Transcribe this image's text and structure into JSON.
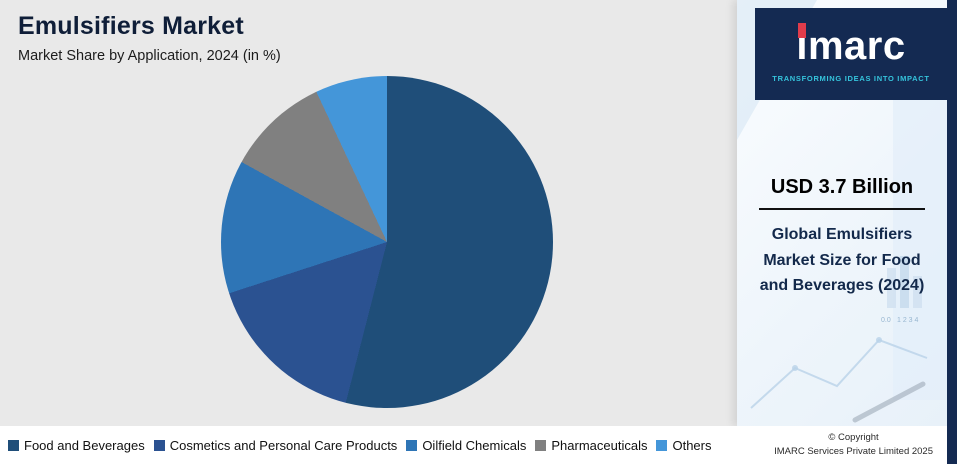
{
  "header": {
    "title": "Emulsifiers Market",
    "subtitle": "Market Share by Application, 2024 (in %)"
  },
  "chart_data": {
    "type": "pie",
    "title": "Emulsifiers Market",
    "subtitle": "Market Share by Application, 2024 (in %)",
    "unit": "percent",
    "labels": [
      "Food and Beverages",
      "Cosmetics and Personal Care Products",
      "Oilfield Chemicals",
      "Pharmaceuticals",
      "Others"
    ],
    "values": [
      54,
      16,
      13,
      10,
      7
    ],
    "colors": [
      "#1f4e79",
      "#2b5291",
      "#2e75b6",
      "#808080",
      "#4496d9"
    ],
    "start_angle_deg": 0,
    "direction": "clockwise",
    "legend_position": "bottom",
    "data_labels_shown": false
  },
  "sidebar": {
    "logo": {
      "text": "imarc",
      "tagline": "TRANSFORMING IDEAS INTO IMPACT"
    },
    "stat": {
      "value": "USD 3.7 Billion",
      "label": "Global Emulsifiers Market Size for Food and Beverages (2024)"
    },
    "decor": {
      "ticks_a": "0.0",
      "ticks_b": "1 2 3 4"
    }
  },
  "footer": {
    "copyright_line1": "© Copyright",
    "copyright_line2": "IMARC Services Private Limited 2025"
  },
  "brand": {
    "navy": "#142a52",
    "red": "#e03c4b",
    "teal": "#35c4dc",
    "main_bg": "#e9e9e9",
    "panel_bg": "#ffffff"
  }
}
